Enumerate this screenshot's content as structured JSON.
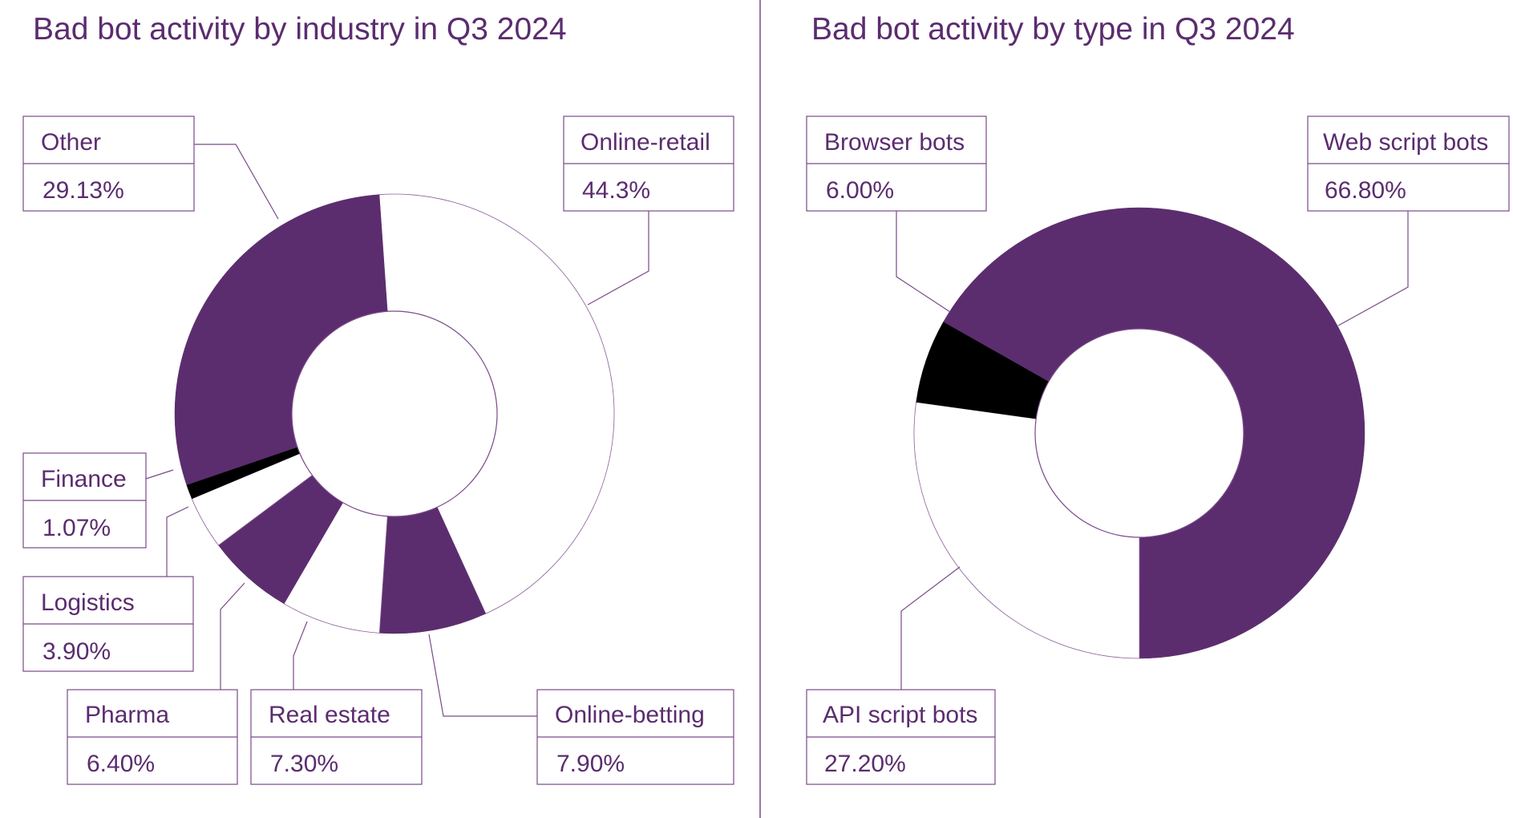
{
  "colors": {
    "purple": "#5c2d6e",
    "black": "#000000",
    "white": "#ffffff",
    "text": "#5b2c6f",
    "line": "#7a4a8a"
  },
  "chart_data": [
    {
      "type": "pie",
      "title": "Bad bot activity by industry in Q3 2024",
      "slices": [
        {
          "name": "Online-retail",
          "value": 44.3,
          "value_label": "44.3%",
          "color": "#ffffff"
        },
        {
          "name": "Online-betting",
          "value": 7.9,
          "value_label": "7.90%",
          "color": "#5c2d6e"
        },
        {
          "name": "Real estate",
          "value": 7.3,
          "value_label": "7.30%",
          "color": "#ffffff"
        },
        {
          "name": "Pharma",
          "value": 6.4,
          "value_label": "6.40%",
          "color": "#5c2d6e"
        },
        {
          "name": "Logistics",
          "value": 3.9,
          "value_label": "3.90%",
          "color": "#ffffff"
        },
        {
          "name": "Finance",
          "value": 1.07,
          "value_label": "1.07%",
          "color": "#000000"
        },
        {
          "name": "Other",
          "value": 29.13,
          "value_label": "29.13%",
          "color": "#5c2d6e"
        }
      ]
    },
    {
      "type": "pie",
      "title": "Bad bot activity by type in Q3 2024",
      "slices": [
        {
          "name": "Web script bots",
          "value": 66.8,
          "value_label": "66.80%",
          "color": "#5c2d6e"
        },
        {
          "name": "API script bots",
          "value": 27.2,
          "value_label": "27.20%",
          "color": "#ffffff"
        },
        {
          "name": "Browser bots",
          "value": 6.0,
          "value_label": "6.00%",
          "color": "#000000"
        }
      ]
    }
  ]
}
